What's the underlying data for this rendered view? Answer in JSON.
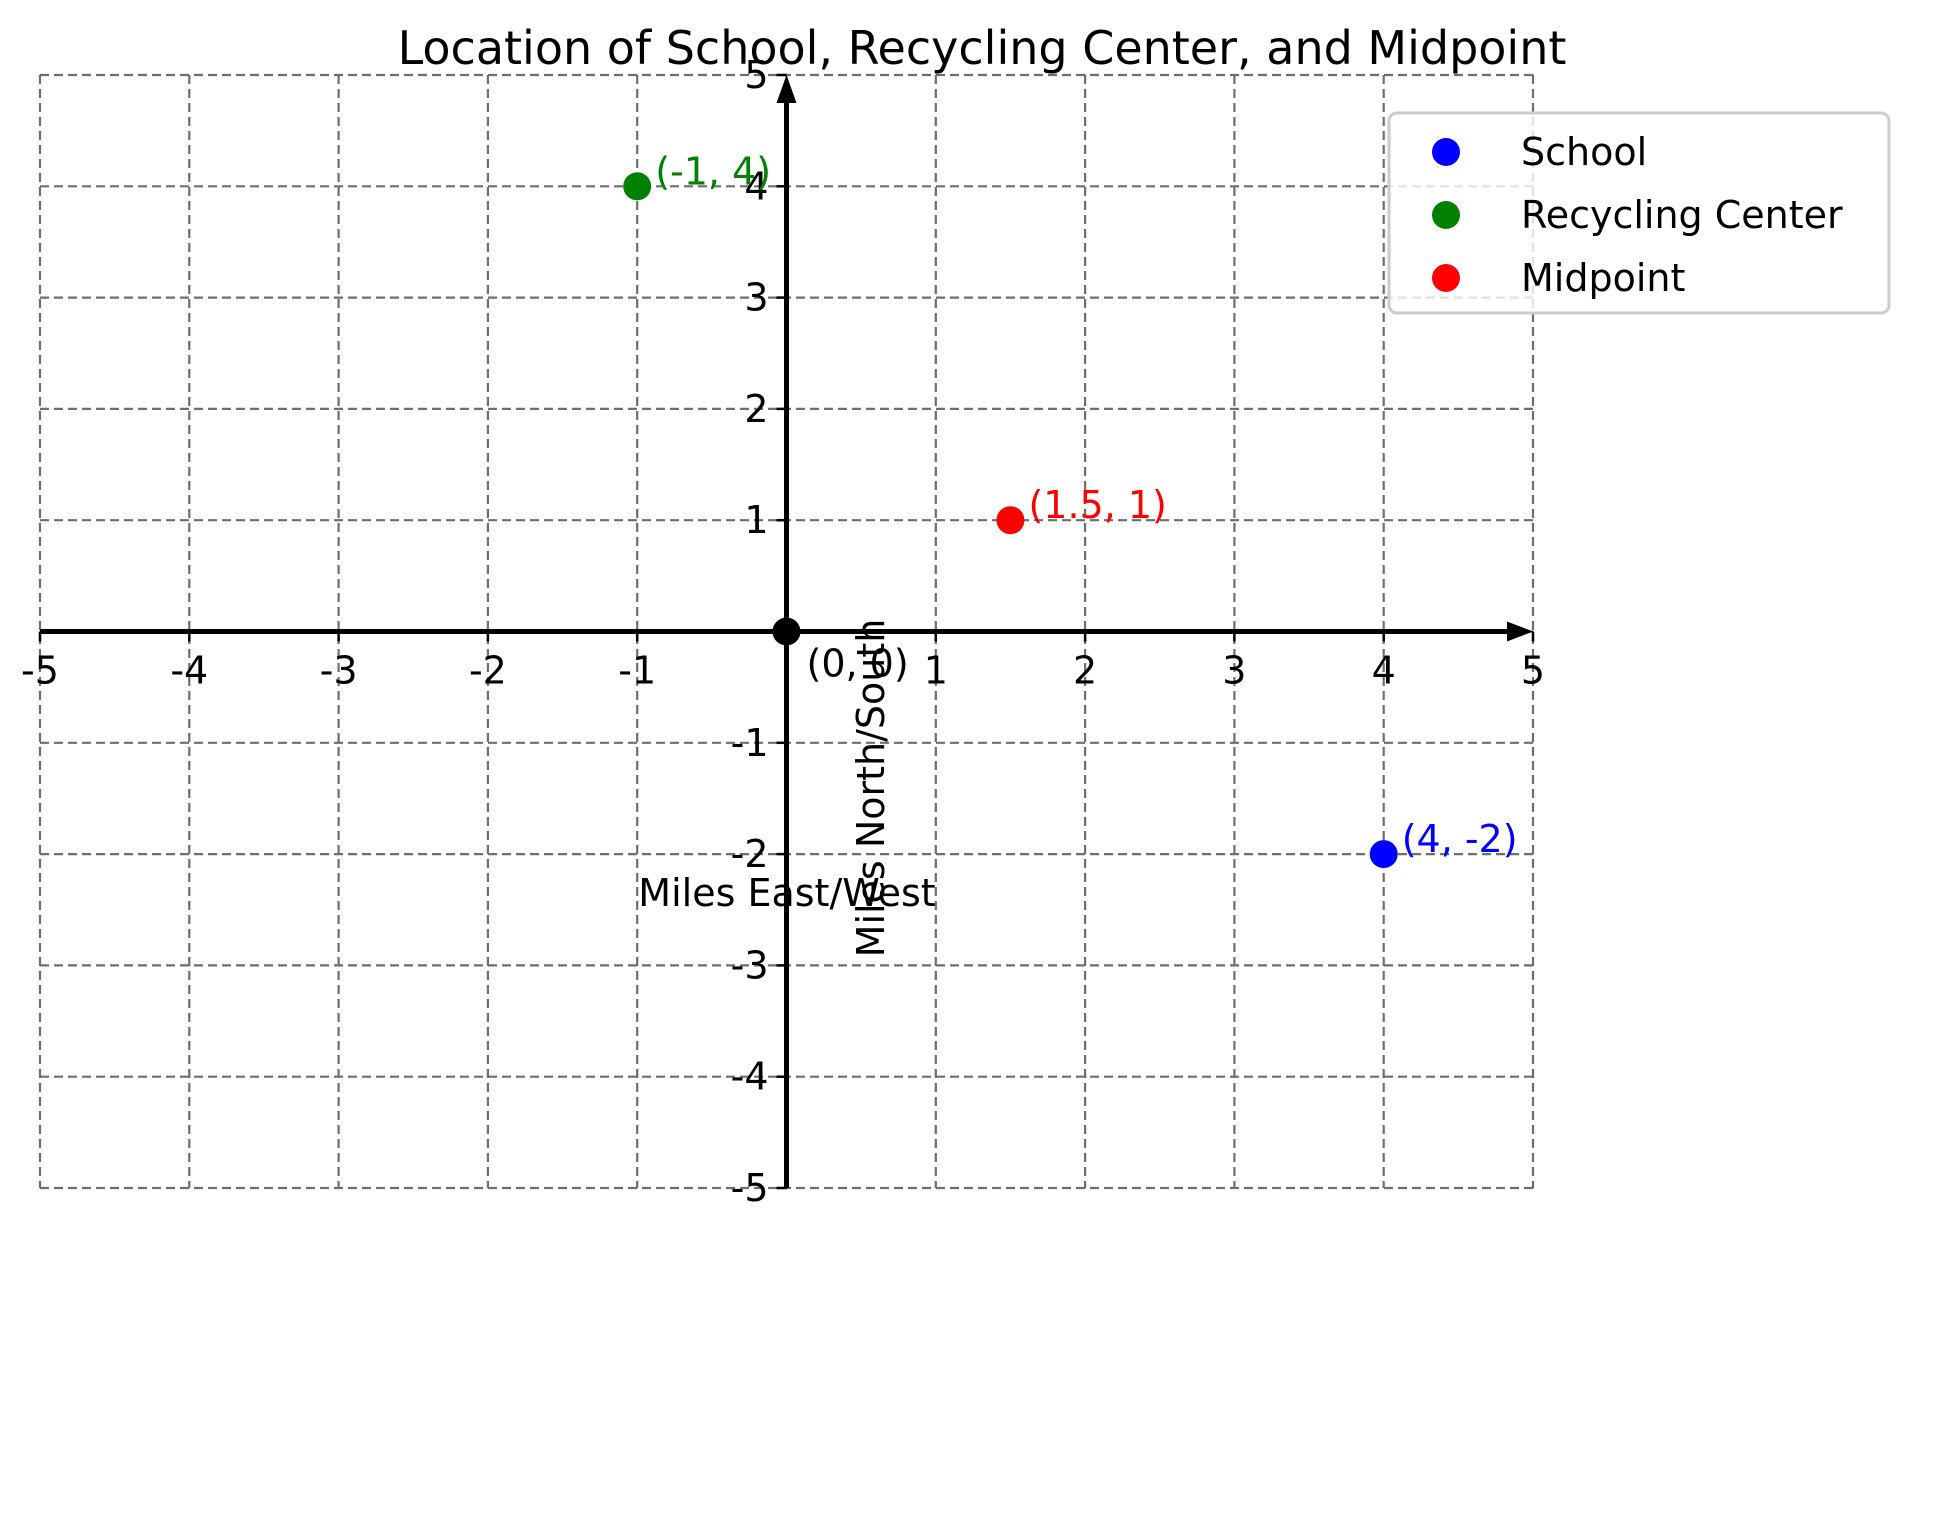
{
  "chart_data": {
    "type": "scatter",
    "title": "Location of School, Recycling Center, and Midpoint",
    "xlabel": "Miles East/West",
    "ylabel": "Miles North/South",
    "xlim": [
      -5,
      5
    ],
    "ylim": [
      -5,
      5
    ],
    "grid": true,
    "grid_style": "dashed",
    "legend_position": "upper right",
    "x_ticks": [
      -5,
      -4,
      -3,
      -2,
      -1,
      1,
      2,
      3,
      4,
      5
    ],
    "y_ticks": [
      -5,
      -4,
      -3,
      -2,
      -1,
      1,
      2,
      3,
      4,
      5
    ],
    "x_tick_labels": [
      "-5",
      "-4",
      "-3",
      "-2",
      "-1",
      "1",
      "2",
      "3",
      "4",
      "5"
    ],
    "y_tick_labels": [
      "-5",
      "-4",
      "-3",
      "-2",
      "-1",
      "1",
      "2",
      "3",
      "4",
      "5"
    ],
    "series": [
      {
        "name": "School",
        "color": "#0000ff",
        "points": [
          {
            "x": 4,
            "y": -2,
            "label": "(4, -2)"
          }
        ]
      },
      {
        "name": "Recycling Center",
        "color": "#008000",
        "points": [
          {
            "x": -1,
            "y": 4,
            "label": "(-1, 4)"
          }
        ]
      },
      {
        "name": "Midpoint",
        "color": "#ff0000",
        "points": [
          {
            "x": 1.5,
            "y": 1,
            "label": "(1.5, 1)"
          }
        ]
      }
    ],
    "origin": {
      "x": 0,
      "y": 0,
      "label": "(0, 0)",
      "color": "#000000"
    },
    "legend": [
      {
        "label": "School",
        "color": "#0000ff"
      },
      {
        "label": "Recycling Center",
        "color": "#008000"
      },
      {
        "label": "Midpoint",
        "color": "#ff0000"
      }
    ]
  }
}
